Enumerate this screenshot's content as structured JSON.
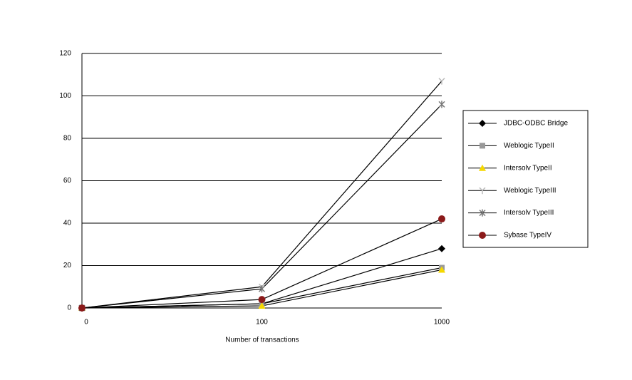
{
  "chart_data": {
    "type": "line",
    "x_label": "Number of transactions",
    "categories": [
      "0",
      "100",
      "1000"
    ],
    "series": [
      {
        "name": "JDBC-ODBC Bridge",
        "color": "#000000",
        "marker": "diamond",
        "values": [
          0,
          2,
          28
        ]
      },
      {
        "name": "Weblogic TypeII",
        "color": "#999999",
        "marker": "square",
        "values": [
          0,
          2,
          19
        ]
      },
      {
        "name": "Intersolv TypeII",
        "color": "#f5d800",
        "marker": "triangle",
        "values": [
          0,
          1,
          18
        ]
      },
      {
        "name": "Weblogic TypeIII",
        "color": "#bbbbbb",
        "marker": "plus",
        "values": [
          0,
          10,
          107
        ]
      },
      {
        "name": "Intersolv TypeIII",
        "color": "#777777",
        "marker": "star",
        "values": [
          0,
          9,
          96
        ]
      },
      {
        "name": "Sybase TypeIV",
        "color": "#8b1a1a",
        "marker": "circle",
        "values": [
          0,
          4,
          42
        ]
      }
    ],
    "ylim": [
      0,
      120
    ],
    "yticks": [
      0,
      20,
      40,
      60,
      80,
      100,
      120
    ],
    "grid": true,
    "legend": "right"
  }
}
